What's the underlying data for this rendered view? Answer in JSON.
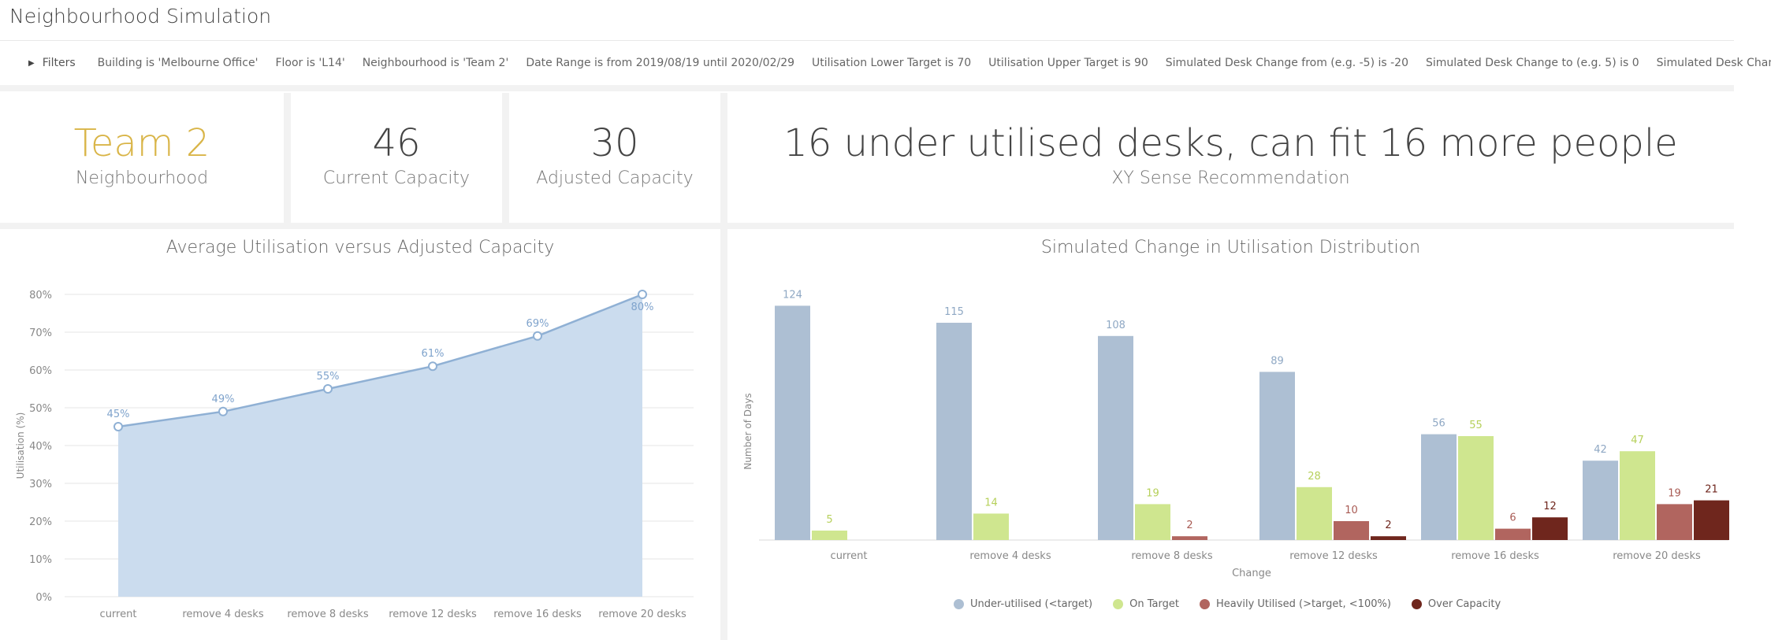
{
  "page": {
    "title": "Neighbourhood Simulation"
  },
  "filters": {
    "label": "Filters",
    "items": [
      "Building is 'Melbourne Office'",
      "Floor is 'L14'",
      "Neighbourhood is 'Team 2'",
      "Date Range is from 2019/08/19 until 2020/02/29",
      "Utilisation Lower Target is 70",
      "Utilisation Upper Target is 90",
      "Simulated Desk Change from (e.g. -5) is -20",
      "Simulated Desk Change to (e.g. 5) is 0",
      "Simulated Desk Change"
    ]
  },
  "kpis": {
    "neighbourhood": {
      "value": "Team 2",
      "label": "Neighbourhood"
    },
    "current_capacity": {
      "value": "46",
      "label": "Current Capacity"
    },
    "adjusted_capacity": {
      "value": "30",
      "label": "Adjusted Capacity"
    },
    "recommendation": {
      "value": "16 under utilised desks, can fit 16 more people",
      "label": "XY Sense Recommendation"
    }
  },
  "colors": {
    "area_fill": "#cbdcee",
    "area_line": "#8fb0d4",
    "under": "#adbfd3",
    "on_target": "#cfe68f",
    "heavy": "#b1655f",
    "over": "#6f261d",
    "gold": "#d9b548"
  },
  "chart_data": [
    {
      "type": "area",
      "title": "Average Utilisation versus Adjusted Capacity",
      "xlabel": "",
      "ylabel": "Utilisation (%)",
      "categories": [
        "current",
        "remove 4 desks",
        "remove 8 desks",
        "remove 12 desks",
        "remove 16 desks",
        "remove 20 desks"
      ],
      "values": [
        45,
        49,
        55,
        61,
        69,
        80
      ],
      "value_labels": [
        "45%",
        "49%",
        "55%",
        "61%",
        "69%",
        "80%"
      ],
      "yticks": [
        "0%",
        "10%",
        "20%",
        "30%",
        "40%",
        "50%",
        "60%",
        "70%",
        "80%"
      ],
      "ylim": [
        0,
        80
      ],
      "grid": true
    },
    {
      "type": "bar",
      "title": "Simulated Change in Utilisation Distribution",
      "xlabel": "Change",
      "ylabel": "Number of Days",
      "categories": [
        "current",
        "remove 4 desks",
        "remove 8 desks",
        "remove 12 desks",
        "remove 16 desks",
        "remove 20 desks"
      ],
      "series": [
        {
          "name": "Under-utilised (<target)",
          "values": [
            124,
            115,
            108,
            89,
            56,
            42
          ]
        },
        {
          "name": "On Target",
          "values": [
            5,
            14,
            19,
            28,
            55,
            47
          ]
        },
        {
          "name": "Heavily Utilised (>target, <100%)",
          "values": [
            null,
            null,
            2,
            10,
            6,
            19
          ]
        },
        {
          "name": "Over Capacity",
          "values": [
            null,
            null,
            null,
            2,
            12,
            21
          ]
        }
      ],
      "ylim": [
        0,
        130
      ],
      "legend": "bottom"
    }
  ]
}
